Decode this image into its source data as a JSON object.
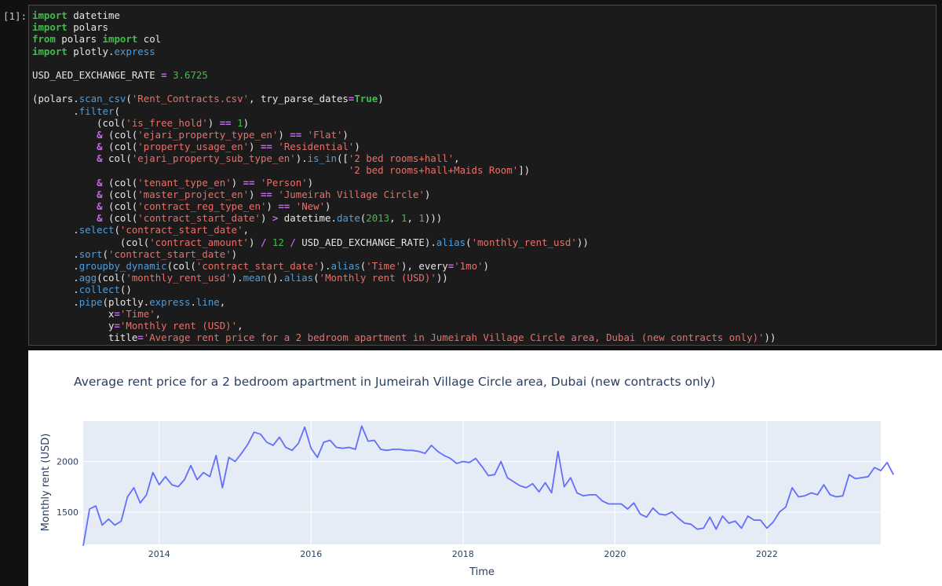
{
  "cell": {
    "prompt": "[1]:",
    "code_lines": [
      [
        [
          "kw",
          "import"
        ],
        [
          "t",
          " datetime"
        ]
      ],
      [
        [
          "kw",
          "import"
        ],
        [
          "t",
          " polars"
        ]
      ],
      [
        [
          "kw",
          "from"
        ],
        [
          "t",
          " polars "
        ],
        [
          "kw",
          "import"
        ],
        [
          "t",
          " col"
        ]
      ],
      [
        [
          "kw",
          "import"
        ],
        [
          "t",
          " plotly."
        ],
        [
          "fn",
          "express"
        ]
      ],
      [
        [
          "t",
          ""
        ]
      ],
      [
        [
          "t",
          "USD_AED_EXCHANGE_RATE "
        ],
        [
          "op",
          "="
        ],
        [
          "t",
          " "
        ],
        [
          "nm",
          "3.6725"
        ]
      ],
      [
        [
          "t",
          ""
        ]
      ],
      [
        [
          "t",
          "(polars."
        ],
        [
          "fn",
          "scan_csv"
        ],
        [
          "t",
          "("
        ],
        [
          "st",
          "'Rent_Contracts.csv'"
        ],
        [
          "t",
          ", try_parse_dates"
        ],
        [
          "op",
          "="
        ],
        [
          "kw",
          "True"
        ],
        [
          "t",
          ")"
        ]
      ],
      [
        [
          "t",
          "       ."
        ],
        [
          "fn",
          "filter"
        ],
        [
          "t",
          "("
        ]
      ],
      [
        [
          "t",
          "           (col("
        ],
        [
          "st",
          "'is_free_hold'"
        ],
        [
          "t",
          ") "
        ],
        [
          "op",
          "=="
        ],
        [
          "t",
          " "
        ],
        [
          "nm",
          "1"
        ],
        [
          "t",
          ")"
        ]
      ],
      [
        [
          "t",
          "           "
        ],
        [
          "op",
          "&"
        ],
        [
          "t",
          " (col("
        ],
        [
          "st",
          "'ejari_property_type_en'"
        ],
        [
          "t",
          ") "
        ],
        [
          "op",
          "=="
        ],
        [
          "t",
          " "
        ],
        [
          "st",
          "'Flat'"
        ],
        [
          "t",
          ")"
        ]
      ],
      [
        [
          "t",
          "           "
        ],
        [
          "op",
          "&"
        ],
        [
          "t",
          " (col("
        ],
        [
          "st",
          "'property_usage_en'"
        ],
        [
          "t",
          ") "
        ],
        [
          "op",
          "=="
        ],
        [
          "t",
          " "
        ],
        [
          "st",
          "'Residential'"
        ],
        [
          "t",
          ")"
        ]
      ],
      [
        [
          "t",
          "           "
        ],
        [
          "op",
          "&"
        ],
        [
          "t",
          " col("
        ],
        [
          "st",
          "'ejari_property_sub_type_en'"
        ],
        [
          "t",
          ")."
        ],
        [
          "fn",
          "is_in"
        ],
        [
          "t",
          "(["
        ],
        [
          "st",
          "'2 bed rooms+hall'"
        ],
        [
          "t",
          ","
        ]
      ],
      [
        [
          "t",
          "                                                      "
        ],
        [
          "st",
          "'2 bed rooms+hall+Maids Room'"
        ],
        [
          "t",
          "])"
        ]
      ],
      [
        [
          "t",
          "           "
        ],
        [
          "op",
          "&"
        ],
        [
          "t",
          " (col("
        ],
        [
          "st",
          "'tenant_type_en'"
        ],
        [
          "t",
          ") "
        ],
        [
          "op",
          "=="
        ],
        [
          "t",
          " "
        ],
        [
          "st",
          "'Person'"
        ],
        [
          "t",
          ")"
        ]
      ],
      [
        [
          "t",
          "           "
        ],
        [
          "op",
          "&"
        ],
        [
          "t",
          " (col("
        ],
        [
          "st",
          "'master_project_en'"
        ],
        [
          "t",
          ") "
        ],
        [
          "op",
          "=="
        ],
        [
          "t",
          " "
        ],
        [
          "st",
          "'Jumeirah Village Circle'"
        ],
        [
          "t",
          ")"
        ]
      ],
      [
        [
          "t",
          "           "
        ],
        [
          "op",
          "&"
        ],
        [
          "t",
          " (col("
        ],
        [
          "st",
          "'contract_reg_type_en'"
        ],
        [
          "t",
          ") "
        ],
        [
          "op",
          "=="
        ],
        [
          "t",
          " "
        ],
        [
          "st",
          "'New'"
        ],
        [
          "t",
          ")"
        ]
      ],
      [
        [
          "t",
          "           "
        ],
        [
          "op",
          "&"
        ],
        [
          "t",
          " (col("
        ],
        [
          "st",
          "'contract_start_date'"
        ],
        [
          "t",
          ") "
        ],
        [
          "op",
          ">"
        ],
        [
          "t",
          " datetime."
        ],
        [
          "fn",
          "date"
        ],
        [
          "t",
          "("
        ],
        [
          "nm",
          "2013"
        ],
        [
          "t",
          ", "
        ],
        [
          "nm",
          "1"
        ],
        [
          "t",
          ", "
        ],
        [
          "nm",
          "1"
        ],
        [
          "t",
          ")))"
        ]
      ],
      [
        [
          "t",
          "       ."
        ],
        [
          "fn",
          "select"
        ],
        [
          "t",
          "("
        ],
        [
          "st",
          "'contract_start_date'"
        ],
        [
          "t",
          ","
        ]
      ],
      [
        [
          "t",
          "               (col("
        ],
        [
          "st",
          "'contract_amount'"
        ],
        [
          "t",
          ") "
        ],
        [
          "op",
          "/"
        ],
        [
          "t",
          " "
        ],
        [
          "nm",
          "12"
        ],
        [
          "t",
          " "
        ],
        [
          "op",
          "/"
        ],
        [
          "t",
          " USD_AED_EXCHANGE_RATE)."
        ],
        [
          "fn",
          "alias"
        ],
        [
          "t",
          "("
        ],
        [
          "st",
          "'monthly_rent_usd'"
        ],
        [
          "t",
          "))"
        ]
      ],
      [
        [
          "t",
          "       ."
        ],
        [
          "fn",
          "sort"
        ],
        [
          "t",
          "("
        ],
        [
          "st",
          "'contract_start_date'"
        ],
        [
          "t",
          ")"
        ]
      ],
      [
        [
          "t",
          "       ."
        ],
        [
          "fn",
          "groupby_dynamic"
        ],
        [
          "t",
          "(col("
        ],
        [
          "st",
          "'contract_start_date'"
        ],
        [
          "t",
          ")."
        ],
        [
          "fn",
          "alias"
        ],
        [
          "t",
          "("
        ],
        [
          "st",
          "'Time'"
        ],
        [
          "t",
          "), every"
        ],
        [
          "op",
          "="
        ],
        [
          "st",
          "'1mo'"
        ],
        [
          "t",
          ")"
        ]
      ],
      [
        [
          "t",
          "       ."
        ],
        [
          "fn",
          "agg"
        ],
        [
          "t",
          "(col("
        ],
        [
          "st",
          "'monthly_rent_usd'"
        ],
        [
          "t",
          ")."
        ],
        [
          "fn",
          "mean"
        ],
        [
          "t",
          "()."
        ],
        [
          "fn",
          "alias"
        ],
        [
          "t",
          "("
        ],
        [
          "st",
          "'Monthly rent (USD)'"
        ],
        [
          "t",
          "))"
        ]
      ],
      [
        [
          "t",
          "       ."
        ],
        [
          "fn",
          "collect"
        ],
        [
          "t",
          "()"
        ]
      ],
      [
        [
          "t",
          "       ."
        ],
        [
          "fn",
          "pipe"
        ],
        [
          "t",
          "(plotly."
        ],
        [
          "fn",
          "express"
        ],
        [
          "t",
          "."
        ],
        [
          "fn",
          "line"
        ],
        [
          "t",
          ","
        ]
      ],
      [
        [
          "t",
          "             x"
        ],
        [
          "op",
          "="
        ],
        [
          "st",
          "'Time'"
        ],
        [
          "t",
          ","
        ]
      ],
      [
        [
          "t",
          "             y"
        ],
        [
          "op",
          "="
        ],
        [
          "st",
          "'Monthly rent (USD)'"
        ],
        [
          "t",
          ","
        ]
      ],
      [
        [
          "t",
          "             title"
        ],
        [
          "op",
          "="
        ],
        [
          "st",
          "'Average rent price for a 2 bedroom apartment in Jumeirah Village Circle area, Dubai (new contracts only)'"
        ],
        [
          "t",
          "))"
        ]
      ]
    ]
  },
  "colors": {
    "line": "#636efa",
    "plot_bg": "#e5ecf6",
    "text": "#2a3f5f"
  },
  "chart_data": {
    "type": "line",
    "title": "Average rent price for a 2 bedroom apartment in Jumeirah Village Circle area, Dubai (new contracts only)",
    "xlabel": "Time",
    "ylabel": "Monthly rent (USD)",
    "x_ticks": [
      "2014",
      "2016",
      "2018",
      "2020",
      "2022"
    ],
    "y_ticks": [
      1500,
      2000
    ],
    "x_range": [
      "2013-01",
      "2023-07"
    ],
    "ylim": [
      1180,
      2400
    ],
    "grid": true,
    "series": [
      {
        "x_start": "2013-01",
        "x_step": "1 month",
        "values": [
          1165,
          1530,
          1560,
          1370,
          1430,
          1370,
          1410,
          1650,
          1740,
          1590,
          1670,
          1890,
          1770,
          1850,
          1770,
          1750,
          1820,
          1960,
          1820,
          1890,
          1850,
          2060,
          1740,
          2040,
          2000,
          2080,
          2170,
          2290,
          2270,
          2190,
          2160,
          2240,
          2140,
          2110,
          2180,
          2340,
          2130,
          2040,
          2190,
          2210,
          2140,
          2130,
          2140,
          2120,
          2350,
          2200,
          2210,
          2120,
          2110,
          2120,
          2120,
          2110,
          2110,
          2100,
          2080,
          2160,
          2100,
          2060,
          2030,
          1980,
          2000,
          1990,
          2030,
          1950,
          1860,
          1870,
          2000,
          1840,
          1800,
          1760,
          1740,
          1780,
          1700,
          1790,
          1690,
          2100,
          1750,
          1840,
          1690,
          1660,
          1670,
          1670,
          1610,
          1580,
          1580,
          1580,
          1530,
          1590,
          1480,
          1450,
          1540,
          1480,
          1470,
          1500,
          1440,
          1390,
          1380,
          1330,
          1340,
          1450,
          1330,
          1460,
          1390,
          1410,
          1340,
          1460,
          1420,
          1420,
          1340,
          1400,
          1500,
          1550,
          1740,
          1650,
          1660,
          1690,
          1670,
          1770,
          1670,
          1650,
          1660,
          1870,
          1830,
          1840,
          1850,
          1940,
          1910,
          1990,
          1870
        ]
      }
    ]
  }
}
